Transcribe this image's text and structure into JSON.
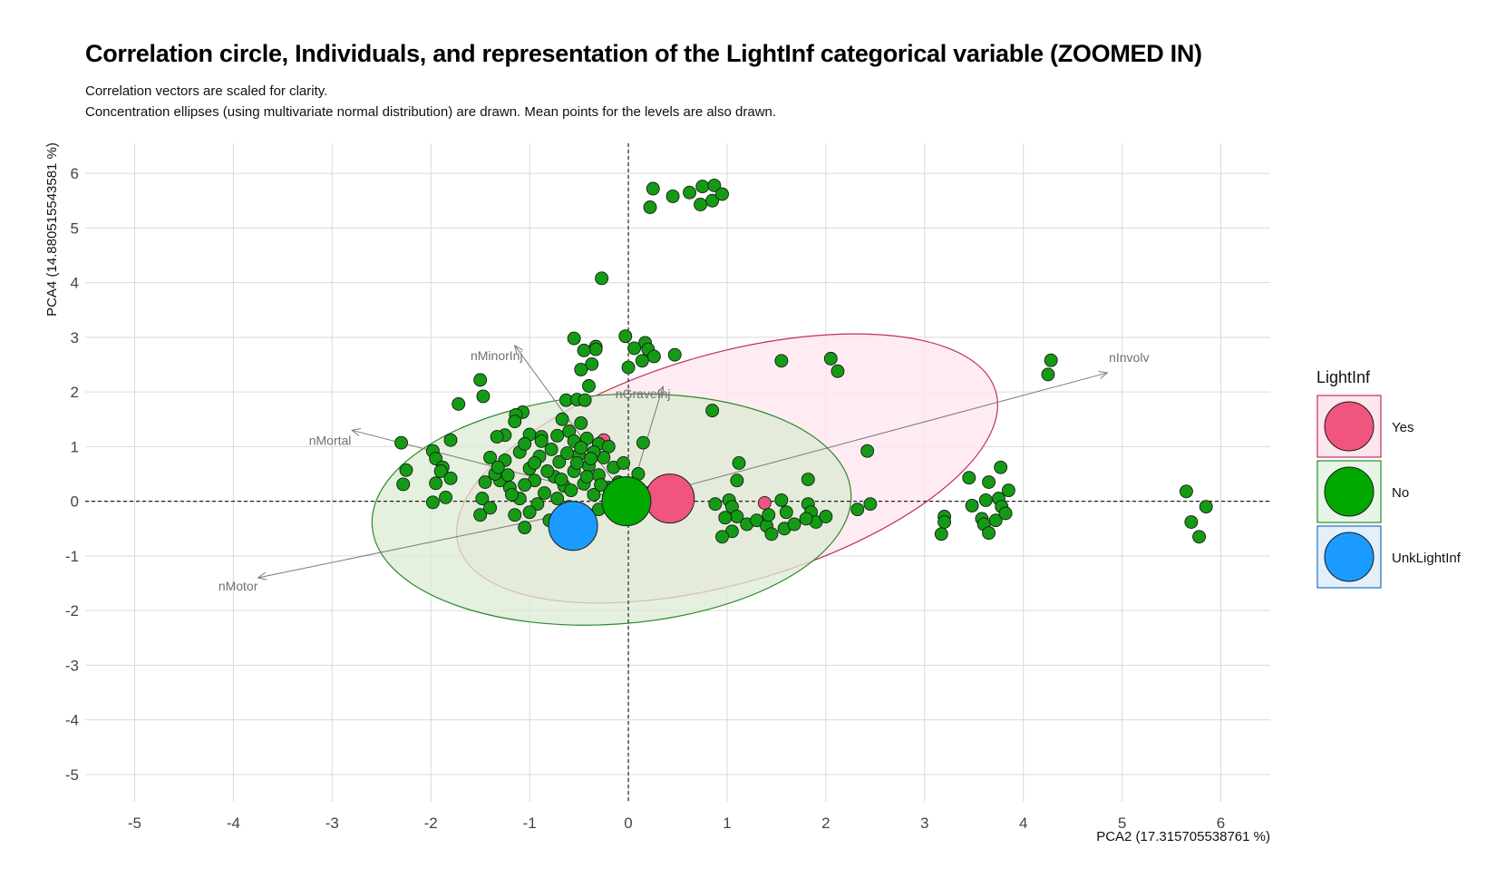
{
  "title": "Correlation circle, Individuals, and representation of the LightInf categorical variable (ZOOMED IN)",
  "subtitle_line1": "Correlation vectors are scaled for clarity.",
  "subtitle_line2": "Concentration ellipses (using multivariate normal distribution) are drawn. Mean points for the levels are also drawn.",
  "chart_data": {
    "type": "scatter",
    "title": "Correlation circle, Individuals, and representation of the LightInf categorical variable (ZOOMED IN)",
    "xlabel": "PCA2 (17.315705538761 %)",
    "ylabel": "PCA4 (14.880515543581 %)",
    "xlim": [
      -5.5,
      6.5
    ],
    "ylim": [
      -5.5,
      6.55
    ],
    "x_ticks": [
      -5,
      -4,
      -3,
      -2,
      -1,
      0,
      1,
      2,
      3,
      4,
      5,
      6
    ],
    "y_ticks": [
      -5,
      -4,
      -3,
      -2,
      -1,
      0,
      1,
      2,
      3,
      4,
      5,
      6
    ],
    "grid": true,
    "reference_lines": {
      "x": 0,
      "y": 0,
      "style": "dashed"
    },
    "legend": {
      "title": "LightInf",
      "placement": "right",
      "entries": [
        {
          "label": "Yes",
          "fill": "#f0557f",
          "border": "#c0305a",
          "bg": "#fde6ee"
        },
        {
          "label": "No",
          "fill": "#00a800",
          "border": "#2a8a2a",
          "bg": "#e6f5e6"
        },
        {
          "label": "UnkLightInf",
          "fill": "#1b9bff",
          "border": "#1f6fbf",
          "bg": "#e3f0fa"
        }
      ]
    },
    "vectors": [
      {
        "name": "nInvolv",
        "x": 4.85,
        "y": 2.35
      },
      {
        "name": "nMotor",
        "x": -3.75,
        "y": -1.4
      },
      {
        "name": "nMinorInj",
        "x": -1.15,
        "y": 2.85
      },
      {
        "name": "nGraveInj",
        "x": 0.35,
        "y": 2.1
      },
      {
        "name": "nMortal",
        "x": -2.8,
        "y": 1.3
      }
    ],
    "ellipses": [
      {
        "level": "Yes",
        "cx": 1.0,
        "cy": 0.6,
        "rx": 2.83,
        "ry": 2.1,
        "angle_deg": -16,
        "fill": "#fde6ee",
        "stroke": "#c0305a"
      },
      {
        "level": "No",
        "cx": -0.17,
        "cy": -0.15,
        "rx": 2.43,
        "ry": 2.1,
        "angle_deg": -4,
        "fill": "#dcebd3",
        "stroke": "#2a8a2a"
      }
    ],
    "means": [
      {
        "level": "Yes",
        "x": 0.42,
        "y": 0.05
      },
      {
        "level": "No",
        "x": -0.02,
        "y": 0.0
      },
      {
        "level": "UnkLightInf",
        "x": -0.56,
        "y": -0.45
      }
    ],
    "points": [
      {
        "level": "Yes",
        "x": -0.25,
        "y": 1.12
      },
      {
        "level": "Yes",
        "x": 1.38,
        "y": -0.03
      },
      {
        "level": "No",
        "x": 0.22,
        "y": 5.38
      },
      {
        "level": "No",
        "x": 0.25,
        "y": 5.72
      },
      {
        "level": "No",
        "x": 0.45,
        "y": 5.58
      },
      {
        "level": "No",
        "x": 0.62,
        "y": 5.65
      },
      {
        "level": "No",
        "x": 0.73,
        "y": 5.43
      },
      {
        "level": "No",
        "x": 0.75,
        "y": 5.76
      },
      {
        "level": "No",
        "x": 0.85,
        "y": 5.5
      },
      {
        "level": "No",
        "x": 0.87,
        "y": 5.78
      },
      {
        "level": "No",
        "x": 0.95,
        "y": 5.62
      },
      {
        "level": "No",
        "x": -0.27,
        "y": 4.08
      },
      {
        "level": "No",
        "x": -0.03,
        "y": 3.02
      },
      {
        "level": "No",
        "x": -0.55,
        "y": 2.98
      },
      {
        "level": "No",
        "x": 0.17,
        "y": 2.9
      },
      {
        "level": "No",
        "x": -0.33,
        "y": 2.83
      },
      {
        "level": "No",
        "x": 0.06,
        "y": 2.8
      },
      {
        "level": "No",
        "x": 0.2,
        "y": 2.78
      },
      {
        "level": "No",
        "x": -0.33,
        "y": 2.78
      },
      {
        "level": "No",
        "x": -0.45,
        "y": 2.76
      },
      {
        "level": "No",
        "x": 0.26,
        "y": 2.65
      },
      {
        "level": "No",
        "x": 0.47,
        "y": 2.68
      },
      {
        "level": "No",
        "x": 0.14,
        "y": 2.57
      },
      {
        "level": "No",
        "x": -0.37,
        "y": 2.51
      },
      {
        "level": "No",
        "x": 0.0,
        "y": 2.45
      },
      {
        "level": "No",
        "x": -0.48,
        "y": 2.41
      },
      {
        "level": "No",
        "x": -1.5,
        "y": 2.22
      },
      {
        "level": "No",
        "x": -0.4,
        "y": 2.11
      },
      {
        "level": "No",
        "x": -1.47,
        "y": 1.92
      },
      {
        "level": "No",
        "x": -0.63,
        "y": 1.85
      },
      {
        "level": "No",
        "x": -0.52,
        "y": 1.86
      },
      {
        "level": "No",
        "x": -0.44,
        "y": 1.85
      },
      {
        "level": "No",
        "x": -1.72,
        "y": 1.78
      },
      {
        "level": "No",
        "x": -0.67,
        "y": 1.5
      },
      {
        "level": "No",
        "x": -1.07,
        "y": 1.63
      },
      {
        "level": "No",
        "x": -1.14,
        "y": 1.58
      },
      {
        "level": "No",
        "x": -1.15,
        "y": 1.46
      },
      {
        "level": "No",
        "x": -0.48,
        "y": 1.43
      },
      {
        "level": "No",
        "x": 0.85,
        "y": 1.66
      },
      {
        "level": "No",
        "x": -1.25,
        "y": 1.21
      },
      {
        "level": "No",
        "x": -1.33,
        "y": 1.18
      },
      {
        "level": "No",
        "x": -1.0,
        "y": 1.22
      },
      {
        "level": "No",
        "x": -0.88,
        "y": 1.18
      },
      {
        "level": "No",
        "x": -0.72,
        "y": 1.2
      },
      {
        "level": "No",
        "x": -0.6,
        "y": 1.28
      },
      {
        "level": "No",
        "x": -0.55,
        "y": 1.1
      },
      {
        "level": "No",
        "x": -0.42,
        "y": 1.15
      },
      {
        "level": "No",
        "x": -0.3,
        "y": 1.05
      },
      {
        "level": "No",
        "x": -0.2,
        "y": 1.0
      },
      {
        "level": "No",
        "x": 0.15,
        "y": 1.07
      },
      {
        "level": "No",
        "x": -2.3,
        "y": 1.07
      },
      {
        "level": "No",
        "x": -1.8,
        "y": 1.12
      },
      {
        "level": "No",
        "x": -1.98,
        "y": 0.92
      },
      {
        "level": "No",
        "x": -1.95,
        "y": 0.78
      },
      {
        "level": "No",
        "x": -1.88,
        "y": 0.62
      },
      {
        "level": "No",
        "x": -2.25,
        "y": 0.57
      },
      {
        "level": "No",
        "x": -1.9,
        "y": 0.55
      },
      {
        "level": "No",
        "x": -1.8,
        "y": 0.42
      },
      {
        "level": "No",
        "x": -1.95,
        "y": 0.33
      },
      {
        "level": "No",
        "x": -2.28,
        "y": 0.31
      },
      {
        "level": "No",
        "x": -1.98,
        "y": -0.02
      },
      {
        "level": "No",
        "x": -1.85,
        "y": 0.07
      },
      {
        "level": "No",
        "x": -1.5,
        "y": -0.25
      },
      {
        "level": "No",
        "x": -1.48,
        "y": 0.05
      },
      {
        "level": "No",
        "x": -1.4,
        "y": -0.12
      },
      {
        "level": "No",
        "x": -1.3,
        "y": 0.38
      },
      {
        "level": "No",
        "x": -1.35,
        "y": 0.5
      },
      {
        "level": "No",
        "x": -1.2,
        "y": 0.25
      },
      {
        "level": "No",
        "x": -1.15,
        "y": -0.25
      },
      {
        "level": "No",
        "x": -1.05,
        "y": -0.48
      },
      {
        "level": "No",
        "x": -1.1,
        "y": 0.05
      },
      {
        "level": "No",
        "x": -1.0,
        "y": 0.6
      },
      {
        "level": "No",
        "x": -0.95,
        "y": 0.38
      },
      {
        "level": "No",
        "x": -0.9,
        "y": 0.82
      },
      {
        "level": "No",
        "x": -0.85,
        "y": 0.15
      },
      {
        "level": "No",
        "x": -0.8,
        "y": -0.35
      },
      {
        "level": "No",
        "x": -0.75,
        "y": 0.45
      },
      {
        "level": "No",
        "x": -0.7,
        "y": 0.72
      },
      {
        "level": "No",
        "x": -0.65,
        "y": 0.28
      },
      {
        "level": "No",
        "x": -0.6,
        "y": -0.1
      },
      {
        "level": "No",
        "x": -0.55,
        "y": 0.55
      },
      {
        "level": "No",
        "x": -0.5,
        "y": 0.85
      },
      {
        "level": "No",
        "x": -0.45,
        "y": 0.32
      },
      {
        "level": "No",
        "x": -0.4,
        "y": 0.65
      },
      {
        "level": "No",
        "x": -0.35,
        "y": 0.12
      },
      {
        "level": "No",
        "x": -0.3,
        "y": 0.48
      },
      {
        "level": "No",
        "x": -0.25,
        "y": 0.8
      },
      {
        "level": "No",
        "x": -0.2,
        "y": 0.25
      },
      {
        "level": "No",
        "x": -0.15,
        "y": 0.62
      },
      {
        "level": "No",
        "x": -0.1,
        "y": 0.35
      },
      {
        "level": "No",
        "x": -0.05,
        "y": 0.15
      },
      {
        "level": "No",
        "x": 0.1,
        "y": 0.5
      },
      {
        "level": "No",
        "x": 0.2,
        "y": 0.15
      },
      {
        "level": "No",
        "x": -1.25,
        "y": 0.75
      },
      {
        "level": "No",
        "x": -1.4,
        "y": 0.8
      },
      {
        "level": "No",
        "x": -1.1,
        "y": 0.9
      },
      {
        "level": "No",
        "x": -0.78,
        "y": 0.95
      },
      {
        "level": "No",
        "x": -0.62,
        "y": 0.88
      },
      {
        "level": "No",
        "x": -0.48,
        "y": 0.98
      },
      {
        "level": "No",
        "x": -0.35,
        "y": 0.9
      },
      {
        "level": "No",
        "x": -1.05,
        "y": 1.05
      },
      {
        "level": "No",
        "x": -1.32,
        "y": 0.62
      },
      {
        "level": "No",
        "x": -1.22,
        "y": 0.48
      },
      {
        "level": "No",
        "x": -1.05,
        "y": 0.3
      },
      {
        "level": "No",
        "x": -0.92,
        "y": -0.05
      },
      {
        "level": "No",
        "x": -0.72,
        "y": 0.05
      },
      {
        "level": "No",
        "x": -0.58,
        "y": 0.2
      },
      {
        "level": "No",
        "x": -0.42,
        "y": 0.45
      },
      {
        "level": "No",
        "x": -0.28,
        "y": 0.3
      },
      {
        "level": "No",
        "x": -0.15,
        "y": -0.05
      },
      {
        "level": "No",
        "x": -1.45,
        "y": 0.35
      },
      {
        "level": "No",
        "x": -0.82,
        "y": 0.55
      },
      {
        "level": "No",
        "x": -0.68,
        "y": 0.4
      },
      {
        "level": "No",
        "x": -0.52,
        "y": 0.7
      },
      {
        "level": "No",
        "x": -0.38,
        "y": 0.78
      },
      {
        "level": "No",
        "x": -0.88,
        "y": 1.1
      },
      {
        "level": "No",
        "x": -0.95,
        "y": 0.7
      },
      {
        "level": "No",
        "x": -1.18,
        "y": 0.12
      },
      {
        "level": "No",
        "x": -1.0,
        "y": -0.2
      },
      {
        "level": "No",
        "x": -0.62,
        "y": -0.3
      },
      {
        "level": "No",
        "x": -0.3,
        "y": -0.15
      },
      {
        "level": "No",
        "x": -0.05,
        "y": 0.7
      },
      {
        "level": "No",
        "x": 0.05,
        "y": 0.3
      },
      {
        "level": "No",
        "x": 2.42,
        "y": 0.92
      },
      {
        "level": "No",
        "x": 1.12,
        "y": 0.7
      },
      {
        "level": "No",
        "x": 1.1,
        "y": 0.38
      },
      {
        "level": "No",
        "x": 1.82,
        "y": 0.4
      },
      {
        "level": "No",
        "x": 0.88,
        "y": -0.05
      },
      {
        "level": "No",
        "x": 1.02,
        "y": 0.02
      },
      {
        "level": "No",
        "x": 1.05,
        "y": -0.1
      },
      {
        "level": "No",
        "x": 1.1,
        "y": -0.28
      },
      {
        "level": "No",
        "x": 1.2,
        "y": -0.42
      },
      {
        "level": "No",
        "x": 1.05,
        "y": -0.55
      },
      {
        "level": "No",
        "x": 0.95,
        "y": -0.65
      },
      {
        "level": "No",
        "x": 0.98,
        "y": -0.3
      },
      {
        "level": "No",
        "x": 1.3,
        "y": -0.35
      },
      {
        "level": "No",
        "x": 1.4,
        "y": -0.45
      },
      {
        "level": "No",
        "x": 1.42,
        "y": -0.25
      },
      {
        "level": "No",
        "x": 1.45,
        "y": -0.6
      },
      {
        "level": "No",
        "x": 1.55,
        "y": 0.02
      },
      {
        "level": "No",
        "x": 1.58,
        "y": -0.5
      },
      {
        "level": "No",
        "x": 1.6,
        "y": -0.2
      },
      {
        "level": "No",
        "x": 1.68,
        "y": -0.42
      },
      {
        "level": "No",
        "x": 1.82,
        "y": -0.05
      },
      {
        "level": "No",
        "x": 1.85,
        "y": -0.2
      },
      {
        "level": "No",
        "x": 1.9,
        "y": -0.38
      },
      {
        "level": "No",
        "x": 1.8,
        "y": -0.32
      },
      {
        "level": "No",
        "x": 2.0,
        "y": -0.28
      },
      {
        "level": "No",
        "x": 2.32,
        "y": -0.15
      },
      {
        "level": "No",
        "x": 2.45,
        "y": -0.05
      },
      {
        "level": "No",
        "x": 1.55,
        "y": 2.57
      },
      {
        "level": "No",
        "x": 2.05,
        "y": 2.61
      },
      {
        "level": "No",
        "x": 2.12,
        "y": 2.38
      },
      {
        "level": "No",
        "x": 4.28,
        "y": 2.58
      },
      {
        "level": "No",
        "x": 4.25,
        "y": 2.32
      },
      {
        "level": "No",
        "x": 3.2,
        "y": -0.28
      },
      {
        "level": "No",
        "x": 3.2,
        "y": -0.38
      },
      {
        "level": "No",
        "x": 3.17,
        "y": -0.6
      },
      {
        "level": "No",
        "x": 3.45,
        "y": 0.43
      },
      {
        "level": "No",
        "x": 3.48,
        "y": -0.08
      },
      {
        "level": "No",
        "x": 3.58,
        "y": -0.32
      },
      {
        "level": "No",
        "x": 3.6,
        "y": -0.42
      },
      {
        "level": "No",
        "x": 3.62,
        "y": 0.02
      },
      {
        "level": "No",
        "x": 3.65,
        "y": 0.35
      },
      {
        "level": "No",
        "x": 3.65,
        "y": -0.58
      },
      {
        "level": "No",
        "x": 3.72,
        "y": -0.35
      },
      {
        "level": "No",
        "x": 3.75,
        "y": 0.05
      },
      {
        "level": "No",
        "x": 3.77,
        "y": 0.62
      },
      {
        "level": "No",
        "x": 3.78,
        "y": -0.1
      },
      {
        "level": "No",
        "x": 3.82,
        "y": -0.22
      },
      {
        "level": "No",
        "x": 3.85,
        "y": 0.2
      },
      {
        "level": "No",
        "x": 5.65,
        "y": 0.18
      },
      {
        "level": "No",
        "x": 5.7,
        "y": -0.38
      },
      {
        "level": "No",
        "x": 5.78,
        "y": -0.65
      },
      {
        "level": "No",
        "x": 5.85,
        "y": -0.1
      }
    ]
  }
}
